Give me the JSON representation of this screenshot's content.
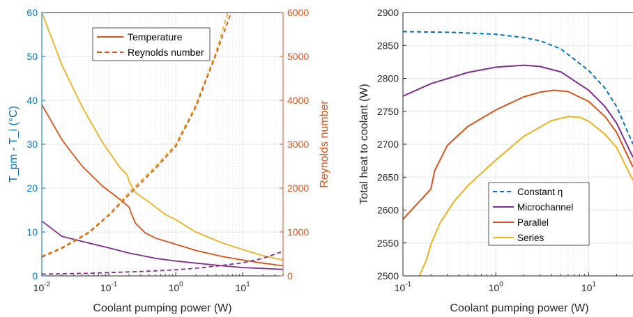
{
  "chart_data": [
    {
      "type": "line",
      "xlabel": "Coolant pumping power (W)",
      "ylabel_left": "T_pm - T_i (°C)",
      "ylabel_right": "Reynolds number",
      "xscale": "log",
      "xlim": [
        0.01,
        40
      ],
      "ylim_left": [
        0,
        60
      ],
      "ylim_right": [
        0,
        6000
      ],
      "xticks": [
        "10^-2",
        "10^-1",
        "10^0",
        "10^1"
      ],
      "yticks_left": [
        "0",
        "10",
        "20",
        "30",
        "40",
        "50",
        "60"
      ],
      "yticks_right": [
        "0",
        "1000",
        "2000",
        "3000",
        "4000",
        "5000",
        "6000"
      ],
      "grid": true,
      "legend_placement": "top-center",
      "legend": [
        {
          "label": "Temperature",
          "style": "solid",
          "color": "#D95319"
        },
        {
          "label": "Reynolds number",
          "style": "dashed",
          "color": "#D95319"
        }
      ],
      "colors": {
        "left_axis": "#0072BD",
        "right_axis": "#D95319",
        "purple": "#7E2F8E",
        "orange": "#D95319",
        "yellow": "#EDB120"
      },
      "series": [
        {
          "color": "#EDB120",
          "style": "solid",
          "axis": "left",
          "x": [
            0.01,
            0.02,
            0.04,
            0.08,
            0.15,
            0.19,
            0.2,
            0.25,
            0.4,
            0.7,
            1,
            2,
            5,
            10,
            20,
            40
          ],
          "y": [
            60,
            48,
            38.5,
            30.5,
            24.5,
            23,
            21.5,
            19,
            16.8,
            14,
            12.8,
            10,
            7.5,
            6,
            4.6,
            3.6
          ]
        },
        {
          "color": "#D95319",
          "style": "solid",
          "axis": "left",
          "x": [
            0.01,
            0.02,
            0.04,
            0.08,
            0.15,
            0.2,
            0.22,
            0.25,
            0.35,
            0.5,
            1,
            2,
            5,
            10,
            20,
            40
          ],
          "y": [
            39,
            31,
            25,
            20.5,
            17.3,
            15.7,
            14,
            12,
            9.8,
            8.6,
            7.2,
            5.8,
            4.4,
            3.6,
            2.9,
            2.3
          ]
        },
        {
          "color": "#7E2F8E",
          "style": "solid",
          "axis": "left",
          "x": [
            0.01,
            0.02,
            0.05,
            0.1,
            0.2,
            0.5,
            1,
            2,
            5,
            10,
            20,
            40
          ],
          "y": [
            12.5,
            9,
            7.5,
            6.4,
            5.2,
            4,
            3.4,
            2.9,
            2.3,
            1.9,
            1.7,
            1.5
          ]
        },
        {
          "color": "#EDB120",
          "style": "dashed",
          "axis": "right",
          "x": [
            0.01,
            0.02,
            0.05,
            0.1,
            0.2,
            0.5,
            1,
            2,
            4,
            6
          ],
          "y": [
            450,
            650,
            1000,
            1400,
            1900,
            2500,
            3000,
            3900,
            5100,
            6000
          ]
        },
        {
          "color": "#D95319",
          "style": "dashed",
          "axis": "right",
          "x": [
            0.01,
            0.02,
            0.05,
            0.1,
            0.2,
            0.5,
            1,
            2,
            4,
            6.7
          ],
          "y": [
            430,
            630,
            980,
            1380,
            1850,
            2450,
            2950,
            3850,
            5050,
            6000
          ]
        },
        {
          "color": "#7E2F8E",
          "style": "dashed",
          "axis": "right",
          "x": [
            0.01,
            0.05,
            0.1,
            0.2,
            0.5,
            1,
            2,
            5,
            10,
            20,
            40
          ],
          "y": [
            40,
            60,
            75,
            90,
            115,
            140,
            175,
            240,
            300,
            400,
            560
          ]
        }
      ]
    },
    {
      "type": "line",
      "xlabel": "Coolant pumping power (W)",
      "ylabel": "Total heat to coolant (W)",
      "xscale": "log",
      "xlim": [
        0.1,
        30
      ],
      "ylim": [
        2500,
        2900
      ],
      "xticks": [
        "10^-1",
        "10^0",
        "10^1"
      ],
      "yticks": [
        "2500",
        "2550",
        "2600",
        "2650",
        "2700",
        "2750",
        "2800",
        "2850",
        "2900"
      ],
      "grid": true,
      "legend_placement": "bottom-center",
      "series": [
        {
          "name": "Constant η",
          "color": "#0072BD",
          "style": "dashed",
          "x": [
            0.1,
            0.3,
            0.7,
            1,
            2,
            3,
            5,
            10,
            15,
            20,
            30
          ],
          "y": [
            2871,
            2870,
            2868,
            2867,
            2862,
            2857,
            2845,
            2812,
            2785,
            2757,
            2700
          ]
        },
        {
          "name": "Microchannel",
          "color": "#7E2F8E",
          "style": "solid",
          "x": [
            0.1,
            0.2,
            0.5,
            1,
            2,
            3,
            5,
            10,
            15,
            20,
            30
          ],
          "y": [
            2773,
            2792,
            2809,
            2817,
            2820,
            2818,
            2810,
            2782,
            2757,
            2732,
            2680
          ]
        },
        {
          "name": "Parallel",
          "color": "#D95319",
          "style": "solid",
          "x": [
            0.1,
            0.2,
            0.22,
            0.3,
            0.5,
            1,
            2,
            3,
            4.2,
            6,
            10,
            15,
            20,
            30
          ],
          "y": [
            2586,
            2632,
            2660,
            2698,
            2727,
            2752,
            2772,
            2779,
            2782,
            2780,
            2765,
            2742,
            2718,
            2665
          ]
        },
        {
          "name": "Series",
          "color": "#EDB120",
          "style": "solid",
          "x": [
            0.15,
            0.18,
            0.2,
            0.25,
            0.35,
            0.5,
            1,
            2,
            4,
            6,
            8,
            10,
            15,
            20,
            30
          ],
          "y": [
            2500,
            2525,
            2548,
            2580,
            2612,
            2637,
            2676,
            2712,
            2736,
            2742,
            2741,
            2735,
            2715,
            2695,
            2645
          ]
        }
      ]
    }
  ]
}
